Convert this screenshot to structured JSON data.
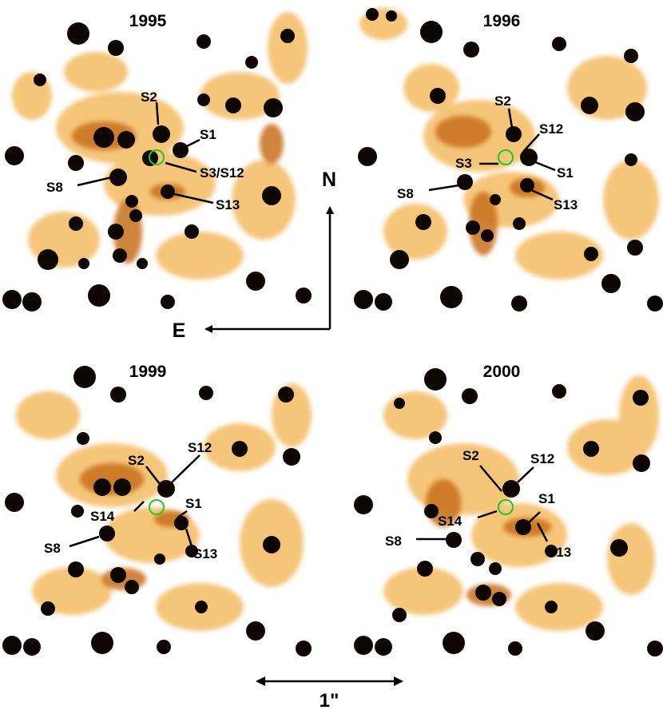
{
  "panels": [
    {
      "year": "1995",
      "labels": [
        "S2",
        "S1",
        "S3/S12",
        "S8",
        "S13"
      ]
    },
    {
      "year": "1996",
      "labels": [
        "S2",
        "S12",
        "S3",
        "S1",
        "S8",
        "S13"
      ]
    },
    {
      "year": "1999",
      "labels": [
        "S2",
        "S12",
        "S14",
        "S1",
        "S8",
        "S13"
      ]
    },
    {
      "year": "2000",
      "labels": [
        "S2",
        "S12",
        "S1",
        "S14",
        "S8",
        "S13"
      ]
    }
  ],
  "compass": {
    "north": "N",
    "east": "E"
  },
  "scale": {
    "label": "1\""
  },
  "colors": {
    "star": "#0d0603",
    "halo": "#c8701e",
    "glow": "#f2b24e",
    "marker": "#22c72a",
    "line": "#000000"
  }
}
